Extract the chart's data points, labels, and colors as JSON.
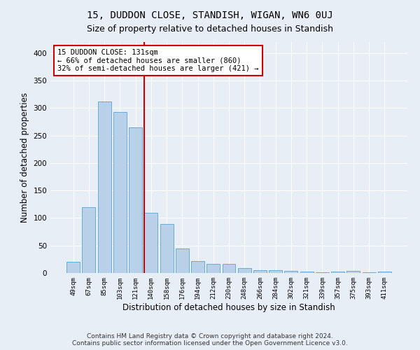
{
  "title": "15, DUDDON CLOSE, STANDISH, WIGAN, WN6 0UJ",
  "subtitle": "Size of property relative to detached houses in Standish",
  "xlabel": "Distribution of detached houses by size in Standish",
  "ylabel": "Number of detached properties",
  "categories": [
    "49sqm",
    "67sqm",
    "85sqm",
    "103sqm",
    "121sqm",
    "140sqm",
    "158sqm",
    "176sqm",
    "194sqm",
    "212sqm",
    "230sqm",
    "248sqm",
    "266sqm",
    "284sqm",
    "302sqm",
    "321sqm",
    "339sqm",
    "357sqm",
    "375sqm",
    "393sqm",
    "411sqm"
  ],
  "values": [
    20,
    120,
    312,
    293,
    265,
    110,
    89,
    44,
    22,
    16,
    16,
    9,
    5,
    5,
    4,
    3,
    1,
    3,
    4,
    1,
    3
  ],
  "bar_color": "#b8d0e8",
  "bar_edge_color": "#6aaad4",
  "vline_x": 4.55,
  "vline_color": "#cc0000",
  "annotation_text": "15 DUDDON CLOSE: 131sqm\n← 66% of detached houses are smaller (860)\n32% of semi-detached houses are larger (421) →",
  "annotation_box_color": "#ffffff",
  "annotation_box_edge_color": "#cc0000",
  "ylim": [
    0,
    420
  ],
  "yticks": [
    0,
    50,
    100,
    150,
    200,
    250,
    300,
    350,
    400
  ],
  "bg_color": "#e8eef6",
  "plot_bg_color": "#e8eef6",
  "footer": "Contains HM Land Registry data © Crown copyright and database right 2024.\nContains public sector information licensed under the Open Government Licence v3.0.",
  "title_fontsize": 10,
  "subtitle_fontsize": 9,
  "xlabel_fontsize": 8.5,
  "ylabel_fontsize": 8.5,
  "footer_fontsize": 6.5,
  "annot_fontsize": 7.5
}
